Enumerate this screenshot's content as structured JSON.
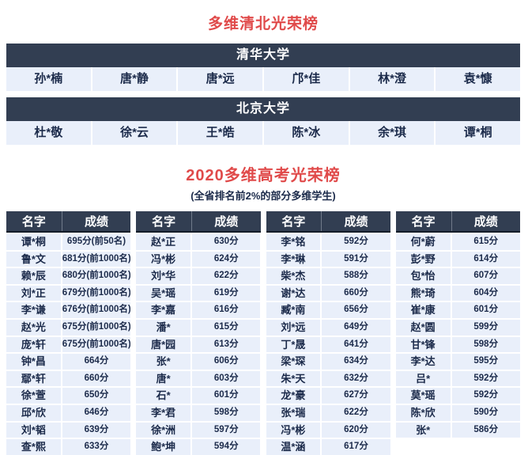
{
  "page": {
    "qingbei_title": "多维清北光荣榜",
    "gaokao_title": "2020多维高考光荣榜",
    "gaokao_subtitle": "(全省排名前2%的部分多维学生)",
    "colors": {
      "header_bg": "#323e52",
      "row_bg": "#e9effa",
      "title_red": "#e04a4a",
      "text_navy": "#1b2a4a"
    }
  },
  "universities": [
    {
      "name": "清华大学",
      "students": [
        "孙*楠",
        "唐*静",
        "唐*远",
        "邝*佳",
        "林*澄",
        "袁*慷"
      ]
    },
    {
      "name": "北京大学",
      "students": [
        "杜*敬",
        "徐*云",
        "王*皓",
        "陈*冰",
        "余*琪",
        "谭*桐"
      ]
    }
  ],
  "score_table": {
    "name_header": "名字",
    "score_header": "成绩",
    "groups": [
      [
        {
          "name": "谭*桐",
          "score": "695分(前50名)"
        },
        {
          "name": "鲁*文",
          "score": "681分(前1000名)"
        },
        {
          "name": "赖*辰",
          "score": "680分(前1000名)"
        },
        {
          "name": "刘*正",
          "score": "679分(前1000名)"
        },
        {
          "name": "李*谦",
          "score": "676分(前1000名)"
        },
        {
          "name": "赵*光",
          "score": "675分(前1000名)"
        },
        {
          "name": "庞*轩",
          "score": "675分(前1000名)"
        },
        {
          "name": "钟*昌",
          "score": "664分"
        },
        {
          "name": "鄢*轩",
          "score": "660分"
        },
        {
          "name": "徐*萱",
          "score": "650分"
        },
        {
          "name": "邱*欣",
          "score": "646分"
        },
        {
          "name": "刘*韬",
          "score": "639分"
        },
        {
          "name": "查*熙",
          "score": "633分"
        }
      ],
      [
        {
          "name": "赵*正",
          "score": "630分"
        },
        {
          "name": "冯*彬",
          "score": "624分"
        },
        {
          "name": "刘*华",
          "score": "622分"
        },
        {
          "name": "吴*瑶",
          "score": "619分"
        },
        {
          "name": "李*嘉",
          "score": "616分"
        },
        {
          "name": "潘*",
          "score": "615分"
        },
        {
          "name": "唐*园",
          "score": "613分"
        },
        {
          "name": "张*",
          "score": "606分"
        },
        {
          "name": "唐*",
          "score": "603分"
        },
        {
          "name": "石*",
          "score": "601分"
        },
        {
          "name": "李*君",
          "score": "598分"
        },
        {
          "name": "徐*洲",
          "score": "597分"
        },
        {
          "name": "鲍*坤",
          "score": "594分"
        }
      ],
      [
        {
          "name": "李*铭",
          "score": "592分"
        },
        {
          "name": "李*琳",
          "score": "591分"
        },
        {
          "name": "柴*杰",
          "score": "588分"
        },
        {
          "name": "谢*达",
          "score": "660分"
        },
        {
          "name": "臧*南",
          "score": "656分"
        },
        {
          "name": "刘*远",
          "score": "649分"
        },
        {
          "name": "丁*晟",
          "score": "641分"
        },
        {
          "name": "梁*琛",
          "score": "634分"
        },
        {
          "name": "朱*天",
          "score": "632分"
        },
        {
          "name": "龙*豪",
          "score": "627分"
        },
        {
          "name": "张*瑞",
          "score": "622分"
        },
        {
          "name": "冯*彬",
          "score": "620分"
        },
        {
          "name": "温*涵",
          "score": "617分"
        }
      ],
      [
        {
          "name": "何*蔚",
          "score": "615分"
        },
        {
          "name": "彭*野",
          "score": "614分"
        },
        {
          "name": "包*怡",
          "score": "607分"
        },
        {
          "name": "熊*琦",
          "score": "604分"
        },
        {
          "name": "崔*康",
          "score": "601分"
        },
        {
          "name": "赵*圆",
          "score": "599分"
        },
        {
          "name": "甘*锋",
          "score": "598分"
        },
        {
          "name": "李*达",
          "score": "595分"
        },
        {
          "name": "吕*",
          "score": "592分"
        },
        {
          "name": "莫*瑶",
          "score": "592分"
        },
        {
          "name": "陈*欣",
          "score": "590分"
        },
        {
          "name": "张*",
          "score": "586分"
        }
      ]
    ]
  }
}
